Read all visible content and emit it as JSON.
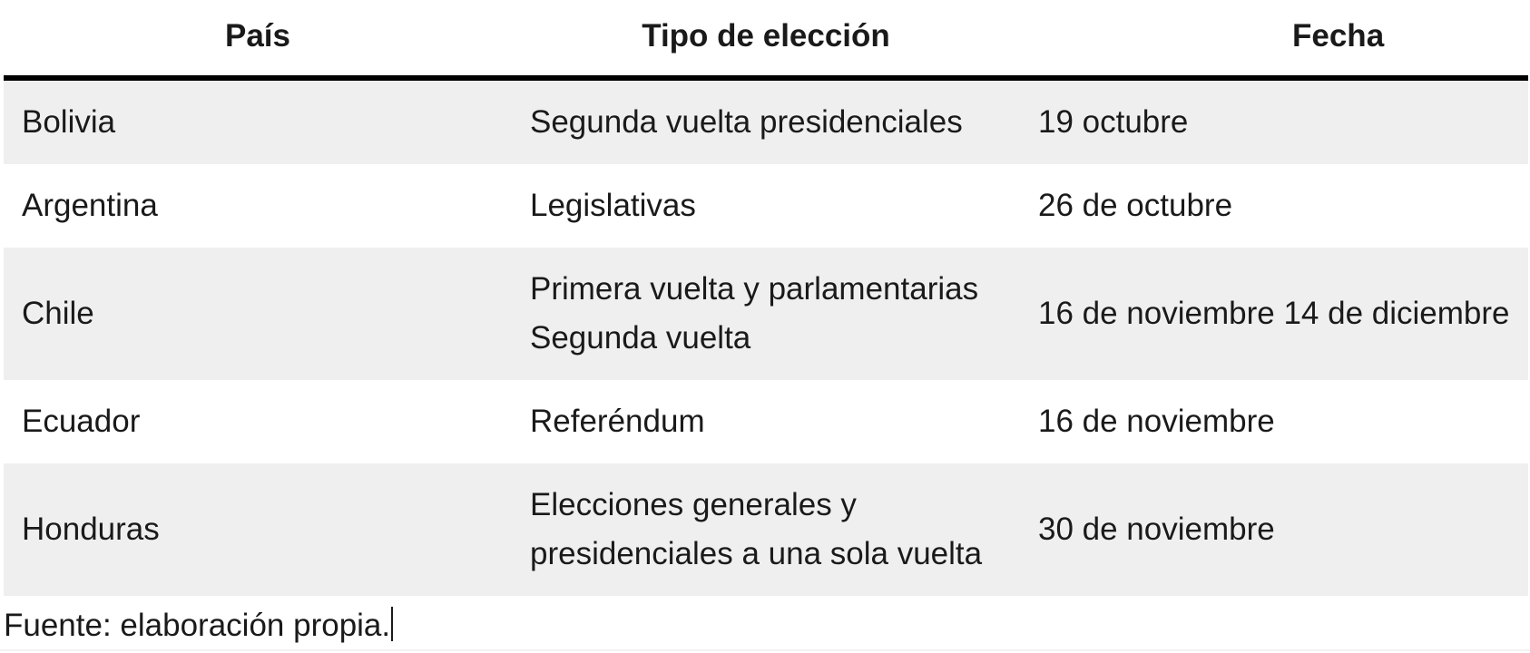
{
  "table": {
    "headers": [
      "País",
      "Tipo de elección",
      "Fecha"
    ],
    "rows": [
      [
        "Bolivia",
        "Segunda vuelta presidenciales",
        "19 octubre"
      ],
      [
        "Argentina",
        "Legislativas",
        "26 de octubre"
      ],
      [
        "Chile",
        "Primera vuelta y parlamentarias Segunda vuelta",
        "16 de noviembre 14 de diciembre"
      ],
      [
        "Ecuador",
        "Referéndum",
        "16 de noviembre"
      ],
      [
        "Honduras",
        "Elecciones generales y presidenciales a una sola vuelta",
        "30 de noviembre"
      ]
    ]
  },
  "caption": "Fuente: elaboración propia.",
  "colors": {
    "row_shade": "#efefef",
    "header_rule": "#000000",
    "text": "#1a1a1a"
  }
}
